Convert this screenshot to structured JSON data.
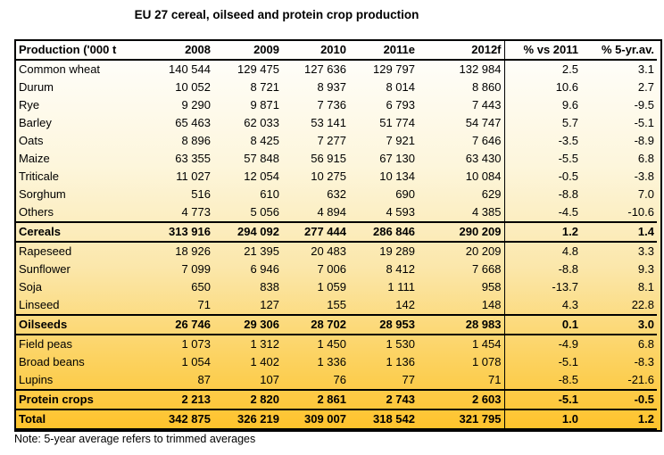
{
  "title": "EU 27 cereal, oilseed and protein crop production",
  "note": "Note: 5-year average refers to trimmed averages",
  "colors": {
    "gradient_top": "#fffffe",
    "gradient_bottom": "#fec32b",
    "border": "#000000",
    "text": "#000000"
  },
  "table": {
    "columns": [
      "Production ('000 t",
      "2008",
      "2009",
      "2010",
      "2011e",
      "2012f",
      "% vs 2011",
      "% 5-yr.av."
    ],
    "rows": [
      {
        "label": "Common wheat",
        "type": "data",
        "values": [
          "140 544",
          "129 475",
          "127 636",
          "129 797",
          "132 984",
          "2.5",
          "3.1"
        ]
      },
      {
        "label": "Durum",
        "type": "data",
        "values": [
          "10 052",
          "8 721",
          "8 937",
          "8 014",
          "8 860",
          "10.6",
          "2.7"
        ]
      },
      {
        "label": "Rye",
        "type": "data",
        "values": [
          "9 290",
          "9 871",
          "7 736",
          "6 793",
          "7 443",
          "9.6",
          "-9.5"
        ]
      },
      {
        "label": "Barley",
        "type": "data",
        "values": [
          "65 463",
          "62 033",
          "53 141",
          "51 774",
          "54 747",
          "5.7",
          "-5.1"
        ]
      },
      {
        "label": "Oats",
        "type": "data",
        "values": [
          "8 896",
          "8 425",
          "7 277",
          "7 921",
          "7 646",
          "-3.5",
          "-8.9"
        ]
      },
      {
        "label": "Maize",
        "type": "data",
        "values": [
          "63 355",
          "57 848",
          "56 915",
          "67 130",
          "63 430",
          "-5.5",
          "6.8"
        ]
      },
      {
        "label": "Triticale",
        "type": "data",
        "values": [
          "11 027",
          "12 054",
          "10 275",
          "10 134",
          "10 084",
          "-0.5",
          "-3.8"
        ]
      },
      {
        "label": "Sorghum",
        "type": "data",
        "values": [
          "516",
          "610",
          "632",
          "690",
          "629",
          "-8.8",
          "7.0"
        ]
      },
      {
        "label": "Others",
        "type": "data",
        "values": [
          "4 773",
          "5 056",
          "4 894",
          "4 593",
          "4 385",
          "-4.5",
          "-10.6"
        ]
      },
      {
        "label": "Cereals",
        "type": "subtotal",
        "values": [
          "313 916",
          "294 092",
          "277 444",
          "286 846",
          "290 209",
          "1.2",
          "1.4"
        ]
      },
      {
        "label": "Rapeseed",
        "type": "data",
        "values": [
          "18 926",
          "21 395",
          "20 483",
          "19 289",
          "20 209",
          "4.8",
          "3.3"
        ]
      },
      {
        "label": "Sunflower",
        "type": "data",
        "values": [
          "7 099",
          "6 946",
          "7 006",
          "8 412",
          "7 668",
          "-8.8",
          "9.3"
        ]
      },
      {
        "label": "Soja",
        "type": "data",
        "values": [
          "650",
          "838",
          "1 059",
          "1 111",
          "958",
          "-13.7",
          "8.1"
        ]
      },
      {
        "label": "Linseed",
        "type": "data",
        "values": [
          "71",
          "127",
          "155",
          "142",
          "148",
          "4.3",
          "22.8"
        ]
      },
      {
        "label": "Oilseeds",
        "type": "subtotal",
        "values": [
          "26 746",
          "29 306",
          "28 702",
          "28 953",
          "28 983",
          "0.1",
          "3.0"
        ]
      },
      {
        "label": "Field peas",
        "type": "data",
        "values": [
          "1 073",
          "1 312",
          "1 450",
          "1 530",
          "1 454",
          "-4.9",
          "6.8"
        ]
      },
      {
        "label": "Broad beans",
        "type": "data",
        "values": [
          "1 054",
          "1 402",
          "1 336",
          "1 136",
          "1 078",
          "-5.1",
          "-8.3"
        ]
      },
      {
        "label": "Lupins",
        "type": "data",
        "values": [
          "87",
          "107",
          "76",
          "77",
          "71",
          "-8.5",
          "-21.6"
        ]
      },
      {
        "label": "Protein crops",
        "type": "subtotal",
        "values": [
          "2 213",
          "2 820",
          "2 861",
          "2 743",
          "2 603",
          "-5.1",
          "-0.5"
        ]
      },
      {
        "label": "Total",
        "type": "total",
        "values": [
          "342 875",
          "326 219",
          "309 007",
          "318 542",
          "321 795",
          "1.0",
          "1.2"
        ]
      }
    ]
  }
}
